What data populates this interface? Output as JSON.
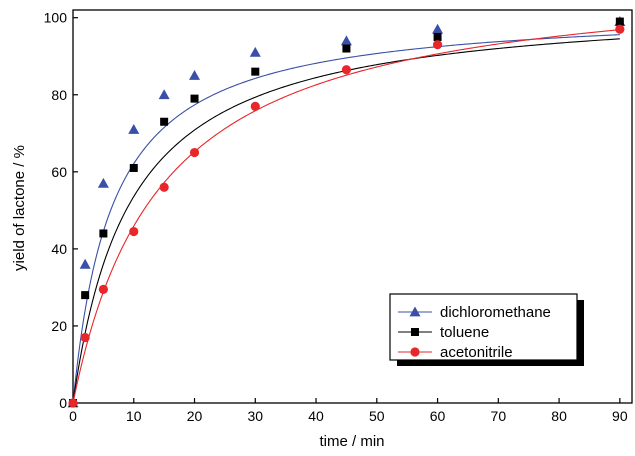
{
  "chart_data": {
    "type": "scatter",
    "xlabel": "time / min",
    "ylabel": "yield of lactone / %",
    "xlim": [
      0,
      92
    ],
    "ylim": [
      0,
      102
    ],
    "xticks": [
      0,
      10,
      20,
      30,
      40,
      50,
      60,
      70,
      80,
      90
    ],
    "yticks": [
      0,
      20,
      40,
      60,
      80,
      100
    ],
    "legend_position": "bottom-right",
    "grid": false,
    "series": [
      {
        "name": "dichloromethane",
        "color": "#3a4fa8",
        "marker": "triangle",
        "x": [
          0,
          2,
          5,
          10,
          15,
          20,
          30,
          45,
          60,
          90
        ],
        "y": [
          0,
          36,
          57,
          71,
          80,
          85,
          91,
          94,
          97,
          99
        ],
        "curve": {
          "ymax": 102.5,
          "k": 6.5
        }
      },
      {
        "name": "toluene",
        "color": "#000000",
        "marker": "square",
        "x": [
          0,
          2,
          5,
          10,
          15,
          20,
          30,
          45,
          60,
          90
        ],
        "y": [
          0,
          28,
          44,
          61,
          73,
          79,
          86,
          92,
          95,
          99
        ],
        "curve": {
          "ymax": 104.5,
          "k": 9.5
        }
      },
      {
        "name": "acetonitrile",
        "color": "#e8272b",
        "marker": "circle",
        "x": [
          0,
          2,
          5,
          10,
          15,
          20,
          30,
          45,
          60,
          90
        ],
        "y": [
          0,
          17,
          29.5,
          44.5,
          56,
          65,
          77,
          86.5,
          93,
          97
        ],
        "curve": {
          "ymax": 112.5,
          "k": 14.5
        }
      }
    ]
  }
}
